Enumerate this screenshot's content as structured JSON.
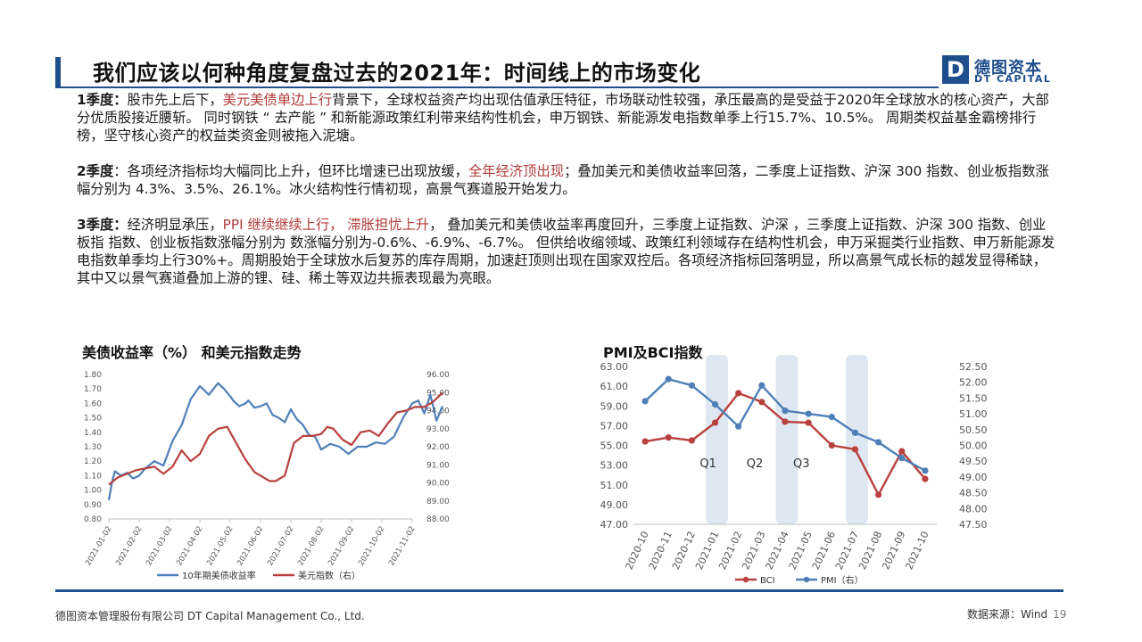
{
  "header": {
    "title": "我们应该以何种角度复盘过去的2021年：时间线上的市场变化",
    "logo_mark": "D",
    "logo_cn": "德图资本",
    "logo_en": "DT CAPITAL"
  },
  "paragraphs": [
    {
      "label": "1季度：",
      "segments": [
        {
          "text": "股市先上后下，",
          "red": false
        },
        {
          "text": "美元美债单边上行",
          "red": true
        },
        {
          "text": "背景下，全球权益资产均出现估值承压特征，市场联动性较强，承压最高的是受益于2020年全球放水的核心资产，大部分优质股接近腰斩。 同时钢铁 “ 去产能 ” 和新能源政策红利带来结构性机会，申万钢铁、新能源发电指数单季上行15.7%、10.5%。 周期类权益基金霸榜排行榜，坚守核心资产的权益类资金则被拖入泥塘。",
          "red": false
        }
      ]
    },
    {
      "label": "2季度",
      "segments": [
        {
          "text": "：各项经济指标均大幅同比上升，但环比增速已出现放缓，",
          "red": false
        },
        {
          "text": "全年经济顶出现",
          "red": true
        },
        {
          "text": "；叠加美元和美债收益率回落，二季度上证指数、沪深 300 指数、创业板指数涨幅分别为 4.3%、3.5%、26.1%。冰火结构性行情初现，高景气赛道股开始发力。",
          "red": false
        }
      ]
    },
    {
      "label": "3季度：",
      "segments": [
        {
          "text": "经济明显承压，",
          "red": false
        },
        {
          "text": "PPI 继续继续上行， 滞胀担忧上升",
          "red": true
        },
        {
          "text": "， 叠加美元和美债收益率再度回升，三季度上证指数、沪深 ，三季度上证指数、沪深 300 指数、创业板指 指数、创业板指数涨幅分别为 数涨幅分别为-0.6%、-6.9%、-6.7%。 但供给收缩领域、政策红利领域存在结构性机会，申万采掘类行业指数、申万新能源发电指数单季均上行30%+。周期股始于全球放水后复苏的库存周期，加速赶顶则出现在国家双控后。各项经济指标回落明显，所以高景气成长标的越发显得稀缺，其中又以景气赛道叠加上游的锂、硅、稀土等双边共振表现最为亮眼。",
          "red": false
        }
      ]
    }
  ],
  "chart_left_title": "美债收益率（%） 和美元指数走势",
  "chart_right_title": "PMI及BCI指数",
  "colors": {
    "blue": "#4f7fb8",
    "red": "#b9403d",
    "brand": "#1f4e8c",
    "band": "#dfe7f2"
  },
  "chart_data": [
    {
      "type": "line",
      "title": "美债收益率（%） 和美元指数走势",
      "x_ticks": [
        "2021-01-02",
        "2021-02-02",
        "2021-03-02",
        "2021-04-02",
        "2021-05-02",
        "2021-06-02",
        "2021-07-02",
        "2021-08-02",
        "2021-09-02",
        "2021-10-02",
        "2021-11-02"
      ],
      "y_left": {
        "ticks": [
          "0.80",
          "0.90",
          "1.00",
          "1.10",
          "1.20",
          "1.30",
          "1.40",
          "1.50",
          "1.60",
          "1.70",
          "1.80"
        ],
        "lim": [
          0.8,
          1.8
        ]
      },
      "y_right": {
        "ticks": [
          "88.00",
          "89.00",
          "90.00",
          "91.00",
          "92.00",
          "93.00",
          "94.00",
          "95.00",
          "96.00"
        ],
        "lim": [
          88,
          96
        ]
      },
      "legend_position": "bottom",
      "series": [
        {
          "name": "10年期美债收益率",
          "axis": "left",
          "x": [
            0,
            0.1,
            0.2,
            0.4,
            0.6,
            0.8,
            1,
            1.2,
            1.5,
            1.8,
            2.1,
            2.4,
            2.7,
            3,
            3.3,
            3.6,
            3.8,
            4,
            4.1,
            4.3,
            4.5,
            4.6,
            4.8,
            5,
            5.2,
            5.4,
            5.6,
            5.8,
            6,
            6.2,
            6.4,
            6.6,
            6.8,
            7,
            7.3,
            7.6,
            7.9,
            8.2,
            8.5,
            8.8,
            9.1,
            9.4,
            9.7,
            10,
            10.2,
            10.4,
            10.6,
            10.8,
            11
          ],
          "values": [
            0.93,
            1.05,
            1.13,
            1.1,
            1.12,
            1.08,
            1.1,
            1.15,
            1.2,
            1.17,
            1.34,
            1.45,
            1.63,
            1.72,
            1.66,
            1.74,
            1.7,
            1.65,
            1.62,
            1.58,
            1.6,
            1.62,
            1.57,
            1.58,
            1.6,
            1.52,
            1.5,
            1.47,
            1.56,
            1.49,
            1.45,
            1.38,
            1.37,
            1.28,
            1.32,
            1.3,
            1.25,
            1.3,
            1.3,
            1.33,
            1.32,
            1.37,
            1.5,
            1.6,
            1.62,
            1.53,
            1.66,
            1.48,
            1.58
          ]
        },
        {
          "name": "美元指数（右）",
          "axis": "right",
          "x": [
            0,
            0.3,
            0.6,
            0.9,
            1.2,
            1.5,
            1.8,
            2.1,
            2.4,
            2.7,
            3,
            3.3,
            3.6,
            3.9,
            4.2,
            4.5,
            4.8,
            5.1,
            5.3,
            5.5,
            5.8,
            6.1,
            6.4,
            6.7,
            7,
            7.2,
            7.4,
            7.7,
            8,
            8.3,
            8.6,
            8.9,
            9.2,
            9.5,
            9.8,
            10.1,
            10.4,
            10.7,
            11
          ],
          "values": [
            89.9,
            90.3,
            90.5,
            90.7,
            90.8,
            90.9,
            90.5,
            90.9,
            91.8,
            91.2,
            91.6,
            92.6,
            93.0,
            93.1,
            92.2,
            91.3,
            90.6,
            90.3,
            90.1,
            90.1,
            90.4,
            92.2,
            92.6,
            92.6,
            92.7,
            93.1,
            93.0,
            92.4,
            92.1,
            92.8,
            92.9,
            92.6,
            93.3,
            93.9,
            94.0,
            94.2,
            94.2,
            94.5,
            95.0
          ]
        }
      ]
    },
    {
      "type": "line",
      "title": "PMI及BCI指数",
      "x_ticks": [
        "2020-10",
        "2020-11",
        "2020-12",
        "2021-01",
        "2021-02",
        "2021-03",
        "2021-04",
        "2021-05",
        "2021-06",
        "2021-07",
        "2021-08",
        "2021-09",
        "2021-10"
      ],
      "y_left": {
        "ticks": [
          "47.00",
          "49.00",
          "51.00",
          "53.00",
          "55.00",
          "57.00",
          "59.00",
          "61.00",
          "63.00"
        ],
        "lim": [
          47,
          63
        ]
      },
      "y_right": {
        "ticks": [
          "47.50",
          "48.00",
          "48.50",
          "49.00",
          "49.50",
          "50.00",
          "50.50",
          "51.00",
          "51.50",
          "52.00",
          "52.50"
        ],
        "lim": [
          47.5,
          52.5
        ]
      },
      "bands": [
        {
          "label": "Q1",
          "from": 3.55,
          "to": 5.45
        },
        {
          "label": "Q2",
          "from": 6.55,
          "to": 8.45
        },
        {
          "label": "Q3",
          "from": 9.55,
          "to": 11.45
        }
      ],
      "legend_position": "bottom",
      "series": [
        {
          "name": "BCI",
          "axis": "left",
          "values": [
            55.4,
            55.8,
            55.5,
            57.3,
            60.3,
            59.4,
            57.4,
            57.3,
            55.0,
            54.6,
            50.0,
            54.4,
            51.6
          ]
        },
        {
          "name": "PMI（右）",
          "axis": "right",
          "values": [
            51.4,
            52.1,
            51.9,
            51.3,
            50.6,
            51.9,
            51.1,
            51.0,
            50.9,
            50.4,
            50.1,
            49.6,
            49.2
          ]
        }
      ]
    }
  ],
  "footer": {
    "left": "德图资本管理股份有限公司 DT Capital Management Co., Ltd.",
    "source": "数据来源：Wind",
    "page": "19"
  }
}
